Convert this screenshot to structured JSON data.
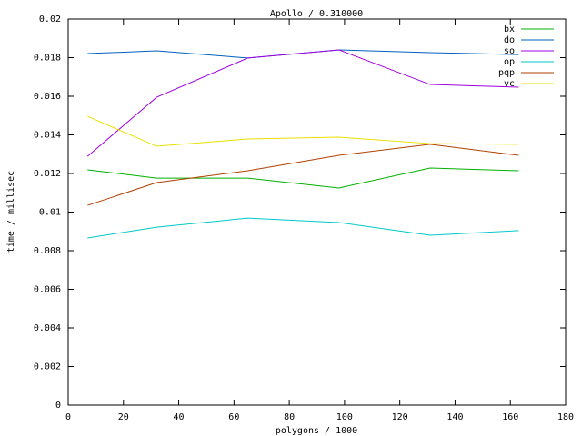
{
  "chart_data": {
    "type": "line",
    "title": "Apollo / 0.310000",
    "x_label": "polygons / 1000",
    "y_label": "time / millisec",
    "x": [
      7,
      32,
      65,
      98,
      131,
      163
    ],
    "series": [
      {
        "name": "bx",
        "color": "#00b000",
        "values": [
          0.01219,
          0.01176,
          0.01176,
          0.01125,
          0.01228,
          0.01214
        ]
      },
      {
        "name": "do",
        "color": "#0060c0",
        "values": [
          0.01821,
          0.01835,
          0.01798,
          0.0184,
          0.01826,
          0.01816
        ]
      },
      {
        "name": "so",
        "color": "#a000e0",
        "values": [
          0.01289,
          0.01595,
          0.01798,
          0.0184,
          0.01661,
          0.01647
        ]
      },
      {
        "name": "op",
        "color": "#00c8c8",
        "values": [
          0.00866,
          0.00922,
          0.00969,
          0.00946,
          0.0088,
          0.00904
        ]
      },
      {
        "name": "pqp",
        "color": "#b04000",
        "values": [
          0.01035,
          0.01153,
          0.01214,
          0.01294,
          0.01351,
          0.01294
        ]
      },
      {
        "name": "vc",
        "color": "#e8e000",
        "values": [
          0.01496,
          0.01341,
          0.01379,
          0.01388,
          0.01355,
          0.01351
        ]
      }
    ],
    "xlim": [
      0,
      180
    ],
    "xticks": [
      0,
      20,
      40,
      60,
      80,
      100,
      120,
      140,
      160,
      180
    ],
    "ylim": [
      0,
      0.02
    ],
    "yticks": [
      0,
      0.002,
      0.004,
      0.006,
      0.008,
      0.01,
      0.012,
      0.014,
      0.016,
      0.018,
      0.02
    ],
    "legend": "top-right"
  }
}
